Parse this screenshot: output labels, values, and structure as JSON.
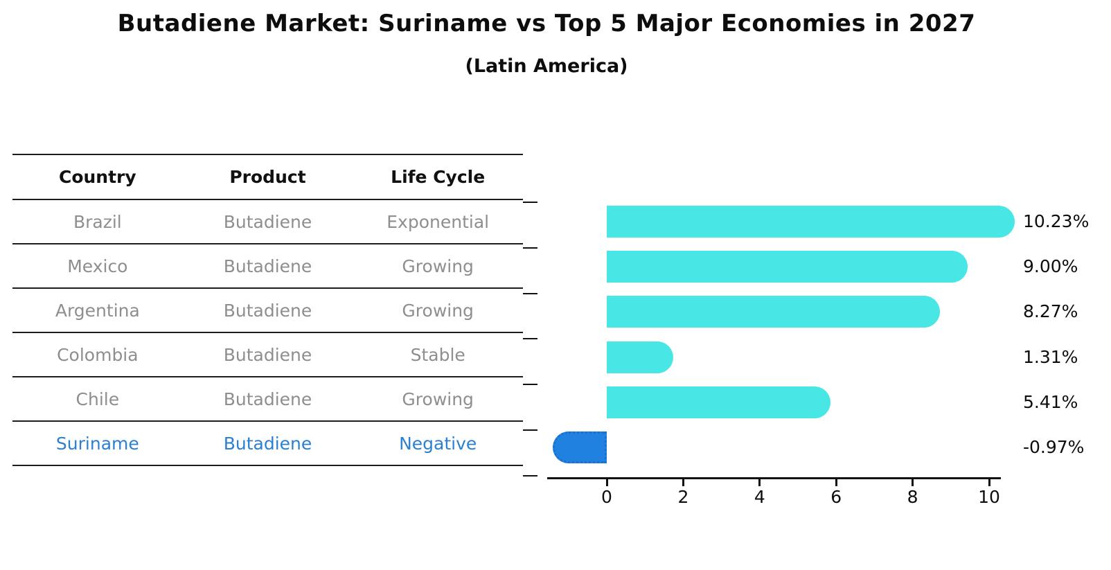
{
  "title": "Butadiene Market: Suriname vs Top 5 Major Economies in 2027",
  "subtitle": "(Latin America)",
  "table": {
    "headers": {
      "country": "Country",
      "product": "Product",
      "life_cycle": "Life Cycle"
    },
    "rows": [
      {
        "country": "Brazil",
        "product": "Butadiene",
        "life_cycle": "Exponential",
        "highlight": false
      },
      {
        "country": "Mexico",
        "product": "Butadiene",
        "life_cycle": "Growing",
        "highlight": false
      },
      {
        "country": "Argentina",
        "product": "Butadiene",
        "life_cycle": "Growing",
        "highlight": false
      },
      {
        "country": "Colombia",
        "product": "Butadiene",
        "life_cycle": "Stable",
        "highlight": false
      },
      {
        "country": "Chile",
        "product": "Butadiene",
        "life_cycle": "Growing",
        "highlight": false
      },
      {
        "country": "Suriname",
        "product": "Butadiene",
        "life_cycle": "Negative",
        "highlight": true
      }
    ]
  },
  "chart_data": {
    "type": "bar",
    "orientation": "horizontal",
    "title": "Butadiene Market: Suriname vs Top 5 Major Economies in 2027",
    "subtitle": "(Latin America)",
    "categories": [
      "Brazil",
      "Mexico",
      "Argentina",
      "Colombia",
      "Chile",
      "Suriname"
    ],
    "values": [
      10.23,
      9.0,
      8.27,
      1.31,
      5.41,
      -0.97
    ],
    "value_labels": [
      "10.23%",
      "9.00%",
      "8.27%",
      "1.31%",
      "5.41%",
      "-0.97%"
    ],
    "xlabel": "",
    "ylabel": "",
    "xticks": [
      0,
      2,
      4,
      6,
      8,
      10
    ],
    "xlim": [
      -1.55,
      10.4
    ],
    "grid": false,
    "legend": "none",
    "highlight_index": 5,
    "highlight_style": "dotted-edge"
  },
  "colors": {
    "bar": "#48e7e6",
    "highlight_bar": "#2181e0",
    "highlight_edge": "#1b6fd0",
    "highlight_text": "#2b80d4",
    "row_text": "#8e8e8e",
    "axis": "#111111"
  }
}
